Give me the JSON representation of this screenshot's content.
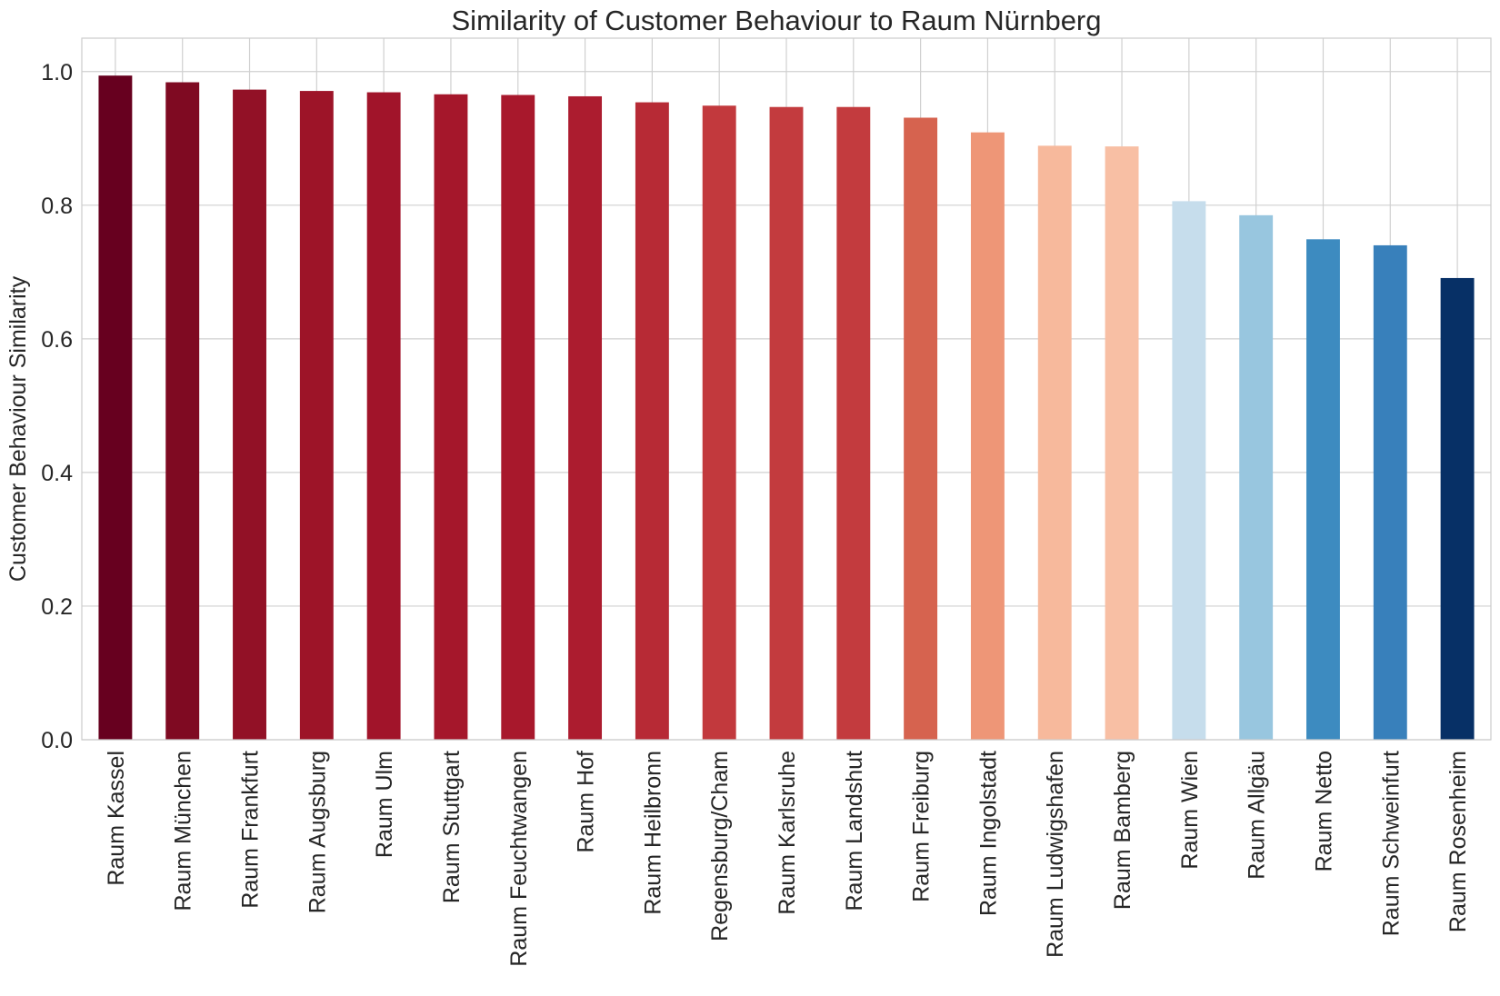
{
  "chart_data": {
    "type": "bar",
    "title": "Similarity of Customer Behaviour to Raum Nürnberg",
    "xlabel": "",
    "ylabel": "Customer Behaviour Similarity",
    "ylim": [
      0,
      1.05
    ],
    "yticks": [
      "0.0",
      "0.2",
      "0.4",
      "0.6",
      "0.8",
      "1.0"
    ],
    "grid": true,
    "categories": [
      "Raum Kassel",
      "Raum München",
      "Raum Frankfurt",
      "Raum Augsburg",
      "Raum Ulm",
      "Raum Stuttgart",
      "Raum Feuchtwangen",
      "Raum Hof",
      "Raum Heilbronn",
      "Regensburg/Cham",
      "Raum Karlsruhe",
      "Raum Landshut",
      "Raum Freiburg",
      "Raum Ingolstadt",
      "Raum Ludwigshafen",
      "Raum Bamberg",
      "Raum Wien",
      "Raum Allgäu",
      "Raum Netto",
      "Raum Schweinfurt",
      "Raum Rosenheim"
    ],
    "values": [
      0.994,
      0.984,
      0.973,
      0.971,
      0.969,
      0.966,
      0.965,
      0.963,
      0.954,
      0.949,
      0.947,
      0.947,
      0.931,
      0.909,
      0.889,
      0.888,
      0.806,
      0.785,
      0.749,
      0.74,
      0.691
    ],
    "colors": [
      "#67001f",
      "#7f0a22",
      "#921126",
      "#9d1428",
      "#a1142a",
      "#a5172b",
      "#a8182c",
      "#ac1c2f",
      "#b72a35",
      "#c2393d",
      "#c33b3e",
      "#c33b3e",
      "#d6634f",
      "#ee9677",
      "#f7b99c",
      "#f8bfa4",
      "#c6ddec",
      "#98c6df",
      "#3d8bc0",
      "#3880bb",
      "#073066"
    ]
  }
}
